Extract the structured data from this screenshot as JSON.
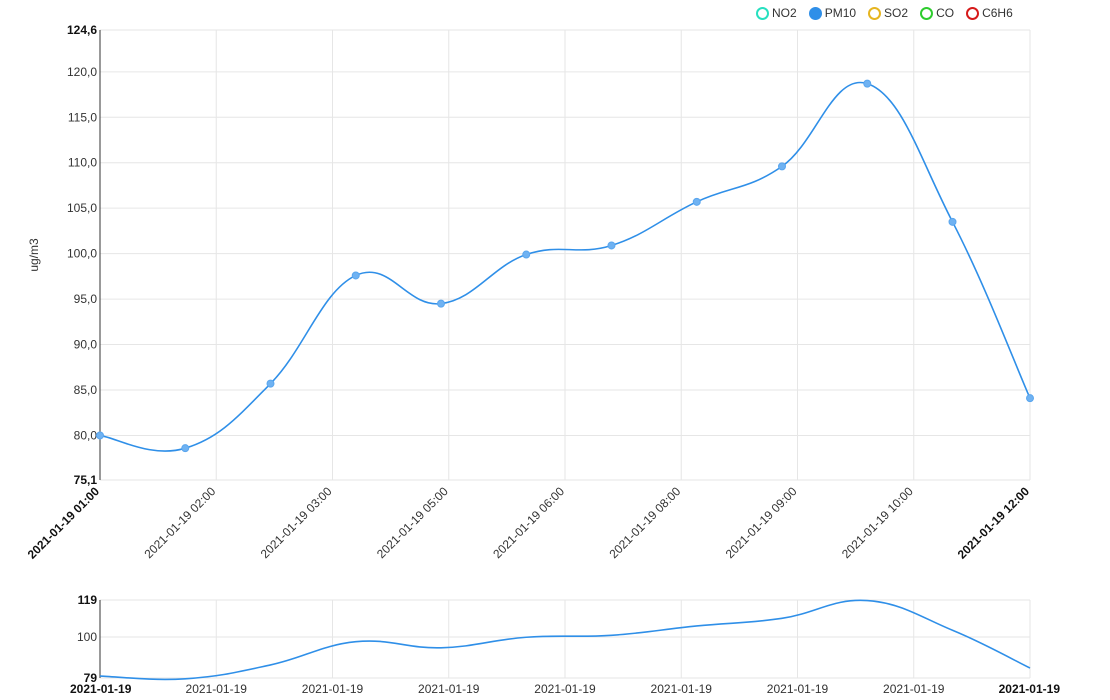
{
  "legend": [
    {
      "label": "NO2",
      "color": "#27e0c0",
      "active": false
    },
    {
      "label": "PM10",
      "color": "#2f8fe8",
      "active": true
    },
    {
      "label": "SO2",
      "color": "#e6b520",
      "active": false
    },
    {
      "label": "CO",
      "color": "#2ecc2e",
      "active": false
    },
    {
      "label": "C6H6",
      "color": "#d61a1a",
      "active": false
    }
  ],
  "chart_data": {
    "type": "line",
    "ylabel": "ug/m3",
    "ylim": [
      75.1,
      124.6
    ],
    "y_ticks": [
      {
        "value": 75.1,
        "label": "75,1",
        "bold": true
      },
      {
        "value": 80,
        "label": "80,0"
      },
      {
        "value": 85,
        "label": "85,0"
      },
      {
        "value": 90,
        "label": "90,0"
      },
      {
        "value": 95,
        "label": "95,0"
      },
      {
        "value": 100,
        "label": "100,0"
      },
      {
        "value": 105,
        "label": "105,0"
      },
      {
        "value": 110,
        "label": "110,0"
      },
      {
        "value": 115,
        "label": "115,0"
      },
      {
        "value": 120,
        "label": "120,0"
      },
      {
        "value": 124.6,
        "label": "124,6",
        "bold": true
      }
    ],
    "x_ticks": [
      {
        "pos": 0,
        "label": "2021-01-19 01:00",
        "bold": true
      },
      {
        "pos": 1.5,
        "label": "2021-01-19 02:00"
      },
      {
        "pos": 3,
        "label": "2021-01-19 03:00"
      },
      {
        "pos": 4.5,
        "label": "2021-01-19 05:00"
      },
      {
        "pos": 6,
        "label": "2021-01-19 06:00"
      },
      {
        "pos": 7.5,
        "label": "2021-01-19 08:00"
      },
      {
        "pos": 9,
        "label": "2021-01-19 09:00"
      },
      {
        "pos": 10.5,
        "label": "2021-01-19 10:00"
      },
      {
        "pos": 12,
        "label": "2021-01-19 12:00",
        "bold": true
      }
    ],
    "series": [
      {
        "name": "PM10",
        "color": "#2f8fe8",
        "x": [
          0,
          1.1,
          2.2,
          3.3,
          4.4,
          5.5,
          6.6,
          7.7,
          8.8,
          9.9,
          11,
          12
        ],
        "values": [
          80.0,
          78.6,
          85.7,
          97.6,
          94.5,
          99.9,
          100.9,
          105.7,
          109.6,
          118.7,
          103.5,
          84.1
        ]
      }
    ],
    "navigator": {
      "ylim": [
        79,
        119
      ],
      "y_ticks": [
        {
          "value": 79,
          "label": "79",
          "bold": true
        },
        {
          "value": 100,
          "label": "100"
        },
        {
          "value": 119,
          "label": "119",
          "bold": true
        }
      ],
      "x_ticks": [
        {
          "pos": 0,
          "label": "2021-01-19",
          "bold": true
        },
        {
          "pos": 1.5,
          "label": "2021-01-19"
        },
        {
          "pos": 3,
          "label": "2021-01-19"
        },
        {
          "pos": 4.5,
          "label": "2021-01-19"
        },
        {
          "pos": 6,
          "label": "2021-01-19"
        },
        {
          "pos": 7.5,
          "label": "2021-01-19"
        },
        {
          "pos": 9,
          "label": "2021-01-19"
        },
        {
          "pos": 10.5,
          "label": "2021-01-19"
        },
        {
          "pos": 12,
          "label": "2021-01-19",
          "bold": true
        }
      ]
    }
  }
}
